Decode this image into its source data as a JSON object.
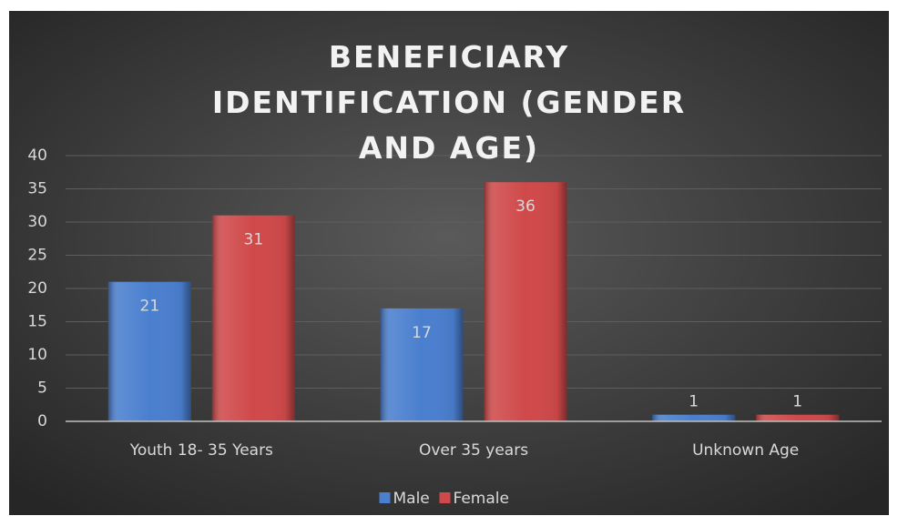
{
  "chart_data": {
    "type": "bar",
    "title": "BENEFICIARY IDENTIFICATION (GENDER AND AGE)",
    "categories": [
      "Youth 18- 35 Years",
      "Over 35 years",
      "Unknown Age"
    ],
    "series": [
      {
        "name": "Male",
        "color": "#4a7fcf",
        "values": [
          21,
          17,
          1
        ]
      },
      {
        "name": "Female",
        "color": "#d0494a",
        "values": [
          31,
          36,
          1
        ]
      }
    ],
    "ylim": [
      0,
      40
    ],
    "yticks": [
      0,
      5,
      10,
      15,
      20,
      25,
      30,
      35,
      40
    ],
    "grid": true,
    "legend": "bottom"
  }
}
